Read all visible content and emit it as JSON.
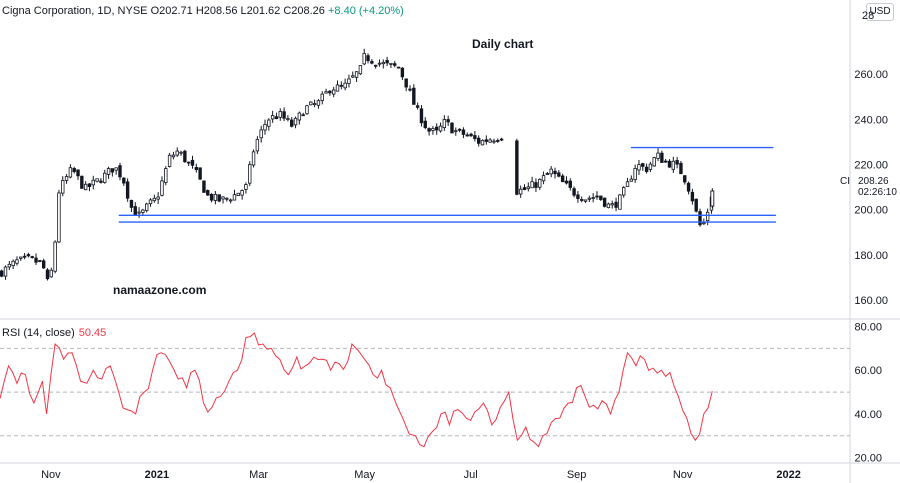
{
  "header": {
    "symbol_line": "Cigna Corporation, 1D, NYSE",
    "open": "O202.71",
    "high": "H208.56",
    "low": "L201.62",
    "close": "C208.26",
    "change": "+8.40 (+4.20%)",
    "currency": "USD"
  },
  "annotations": {
    "title": "Daily chart",
    "watermark": "namaazone.com",
    "last_price": "208.26",
    "countdown": "02:26:10",
    "symbol_short": "CI",
    "top_axis_fragment": "28"
  },
  "rsi_legend": {
    "label": "RSI (14, close)",
    "value": "50.45"
  },
  "colors": {
    "up": "#089981",
    "down": "#131722",
    "candle": "#131722",
    "support": "#2962ff",
    "rsi_line": "#f23645",
    "grid": "#b2b5be"
  },
  "chart_data": [
    {
      "type": "candlestick",
      "title": "Daily chart",
      "ylabel": "",
      "ylim": [
        152,
        284
      ],
      "y_ticks": [
        160,
        180,
        200,
        220,
        240,
        260
      ],
      "y_tick_labels": [
        "160.00",
        "180.00",
        "200.00",
        "220.00",
        "240.00",
        "260.00"
      ],
      "x_tick_labels": [
        "Nov",
        "2021",
        "Mar",
        "May",
        "Jul",
        "Sep",
        "Nov",
        "2022"
      ],
      "x_tick_positions": [
        0.06,
        0.185,
        0.305,
        0.43,
        0.555,
        0.68,
        0.805,
        0.93
      ],
      "grid": false,
      "close_path": [
        [
          0.0,
          172
        ],
        [
          0.02,
          177
        ],
        [
          0.035,
          178
        ],
        [
          0.05,
          176
        ],
        [
          0.058,
          165
        ],
        [
          0.065,
          186
        ],
        [
          0.068,
          207
        ],
        [
          0.075,
          212
        ],
        [
          0.085,
          218
        ],
        [
          0.1,
          209
        ],
        [
          0.12,
          214
        ],
        [
          0.135,
          219
        ],
        [
          0.145,
          214
        ],
        [
          0.155,
          201
        ],
        [
          0.165,
          197
        ],
        [
          0.175,
          202
        ],
        [
          0.185,
          205
        ],
        [
          0.2,
          223
        ],
        [
          0.21,
          226
        ],
        [
          0.23,
          217
        ],
        [
          0.245,
          206
        ],
        [
          0.26,
          204
        ],
        [
          0.275,
          206
        ],
        [
          0.29,
          210
        ],
        [
          0.3,
          228
        ],
        [
          0.315,
          240
        ],
        [
          0.33,
          242
        ],
        [
          0.345,
          237
        ],
        [
          0.36,
          245
        ],
        [
          0.375,
          247
        ],
        [
          0.39,
          254
        ],
        [
          0.405,
          254
        ],
        [
          0.415,
          258
        ],
        [
          0.425,
          262
        ],
        [
          0.43,
          268
        ],
        [
          0.44,
          266
        ],
        [
          0.455,
          264
        ],
        [
          0.47,
          263
        ],
        [
          0.48,
          255
        ],
        [
          0.49,
          245
        ],
        [
          0.505,
          235
        ],
        [
          0.515,
          234
        ],
        [
          0.525,
          239
        ],
        [
          0.535,
          235
        ],
        [
          0.55,
          233
        ],
        [
          0.565,
          230
        ],
        [
          0.575,
          231
        ],
        [
          0.585,
          232
        ],
        [
          0.595,
          233
        ],
        [
          0.598,
          222
        ],
        [
          0.605,
          208
        ],
        [
          0.62,
          209
        ],
        [
          0.635,
          212
        ],
        [
          0.65,
          217
        ],
        [
          0.66,
          213
        ],
        [
          0.675,
          208
        ],
        [
          0.69,
          205
        ],
        [
          0.705,
          206
        ],
        [
          0.72,
          201
        ],
        [
          0.73,
          204
        ],
        [
          0.74,
          211
        ],
        [
          0.75,
          220
        ],
        [
          0.762,
          218
        ],
        [
          0.775,
          224
        ],
        [
          0.785,
          221
        ],
        [
          0.795,
          220
        ],
        [
          0.805,
          216
        ],
        [
          0.815,
          207
        ],
        [
          0.825,
          193
        ],
        [
          0.83,
          194
        ],
        [
          0.835,
          200
        ],
        [
          0.84,
          208.26
        ]
      ],
      "horizontal_levels": [
        {
          "y": 197.5,
          "x_start": 0.14,
          "x_end": 0.915
        },
        {
          "y": 194.5,
          "x_start": 0.14,
          "x_end": 0.915
        },
        {
          "y": 227.5,
          "x_start": 0.744,
          "x_end": 0.912
        }
      ],
      "last_close": 208.26
    },
    {
      "type": "line",
      "title": "RSI (14, close)",
      "ylim": [
        18,
        83
      ],
      "y_ticks": [
        20,
        40,
        60,
        80
      ],
      "y_tick_labels": [
        "20.00",
        "40.00",
        "60.00",
        "80.00"
      ],
      "reference_levels": [
        70,
        50,
        30
      ],
      "series": [
        {
          "name": "RSI (14, close)",
          "points": [
            [
              0.0,
              47
            ],
            [
              0.01,
              62
            ],
            [
              0.02,
              54
            ],
            [
              0.03,
              58
            ],
            [
              0.04,
              45
            ],
            [
              0.05,
              55
            ],
            [
              0.055,
              40
            ],
            [
              0.065,
              72
            ],
            [
              0.075,
              65
            ],
            [
              0.085,
              68
            ],
            [
              0.095,
              55
            ],
            [
              0.11,
              60
            ],
            [
              0.12,
              56
            ],
            [
              0.13,
              62
            ],
            [
              0.14,
              50
            ],
            [
              0.15,
              42
            ],
            [
              0.16,
              40
            ],
            [
              0.17,
              50
            ],
            [
              0.18,
              60
            ],
            [
              0.19,
              68
            ],
            [
              0.2,
              64
            ],
            [
              0.21,
              56
            ],
            [
              0.22,
              52
            ],
            [
              0.23,
              60
            ],
            [
              0.24,
              45
            ],
            [
              0.25,
              43
            ],
            [
              0.26,
              48
            ],
            [
              0.27,
              55
            ],
            [
              0.28,
              60
            ],
            [
              0.29,
              75
            ],
            [
              0.3,
              77
            ],
            [
              0.31,
              72
            ],
            [
              0.32,
              70
            ],
            [
              0.33,
              65
            ],
            [
              0.34,
              58
            ],
            [
              0.35,
              66
            ],
            [
              0.36,
              62
            ],
            [
              0.37,
              66
            ],
            [
              0.38,
              65
            ],
            [
              0.39,
              60
            ],
            [
              0.4,
              63
            ],
            [
              0.41,
              64
            ],
            [
              0.415,
              72
            ],
            [
              0.43,
              65
            ],
            [
              0.44,
              58
            ],
            [
              0.45,
              60
            ],
            [
              0.46,
              52
            ],
            [
              0.475,
              38
            ],
            [
              0.49,
              30
            ],
            [
              0.5,
              25
            ],
            [
              0.51,
              32
            ],
            [
              0.52,
              40
            ],
            [
              0.53,
              35
            ],
            [
              0.54,
              42
            ],
            [
              0.55,
              38
            ],
            [
              0.56,
              41
            ],
            [
              0.57,
              45
            ],
            [
              0.58,
              35
            ],
            [
              0.59,
              43
            ],
            [
              0.6,
              50
            ],
            [
              0.61,
              28
            ],
            [
              0.62,
              34
            ],
            [
              0.63,
              27
            ],
            [
              0.64,
              30
            ],
            [
              0.65,
              36
            ],
            [
              0.66,
              38
            ],
            [
              0.67,
              45
            ],
            [
              0.68,
              52
            ],
            [
              0.69,
              48
            ],
            [
              0.7,
              44
            ],
            [
              0.71,
              46
            ],
            [
              0.72,
              40
            ],
            [
              0.73,
              50
            ],
            [
              0.74,
              68
            ],
            [
              0.75,
              62
            ],
            [
              0.76,
              65
            ],
            [
              0.77,
              61
            ],
            [
              0.78,
              60
            ],
            [
              0.79,
              59
            ],
            [
              0.8,
              48
            ],
            [
              0.81,
              38
            ],
            [
              0.82,
              28
            ],
            [
              0.83,
              40
            ],
            [
              0.84,
              50.45
            ]
          ]
        }
      ]
    }
  ]
}
